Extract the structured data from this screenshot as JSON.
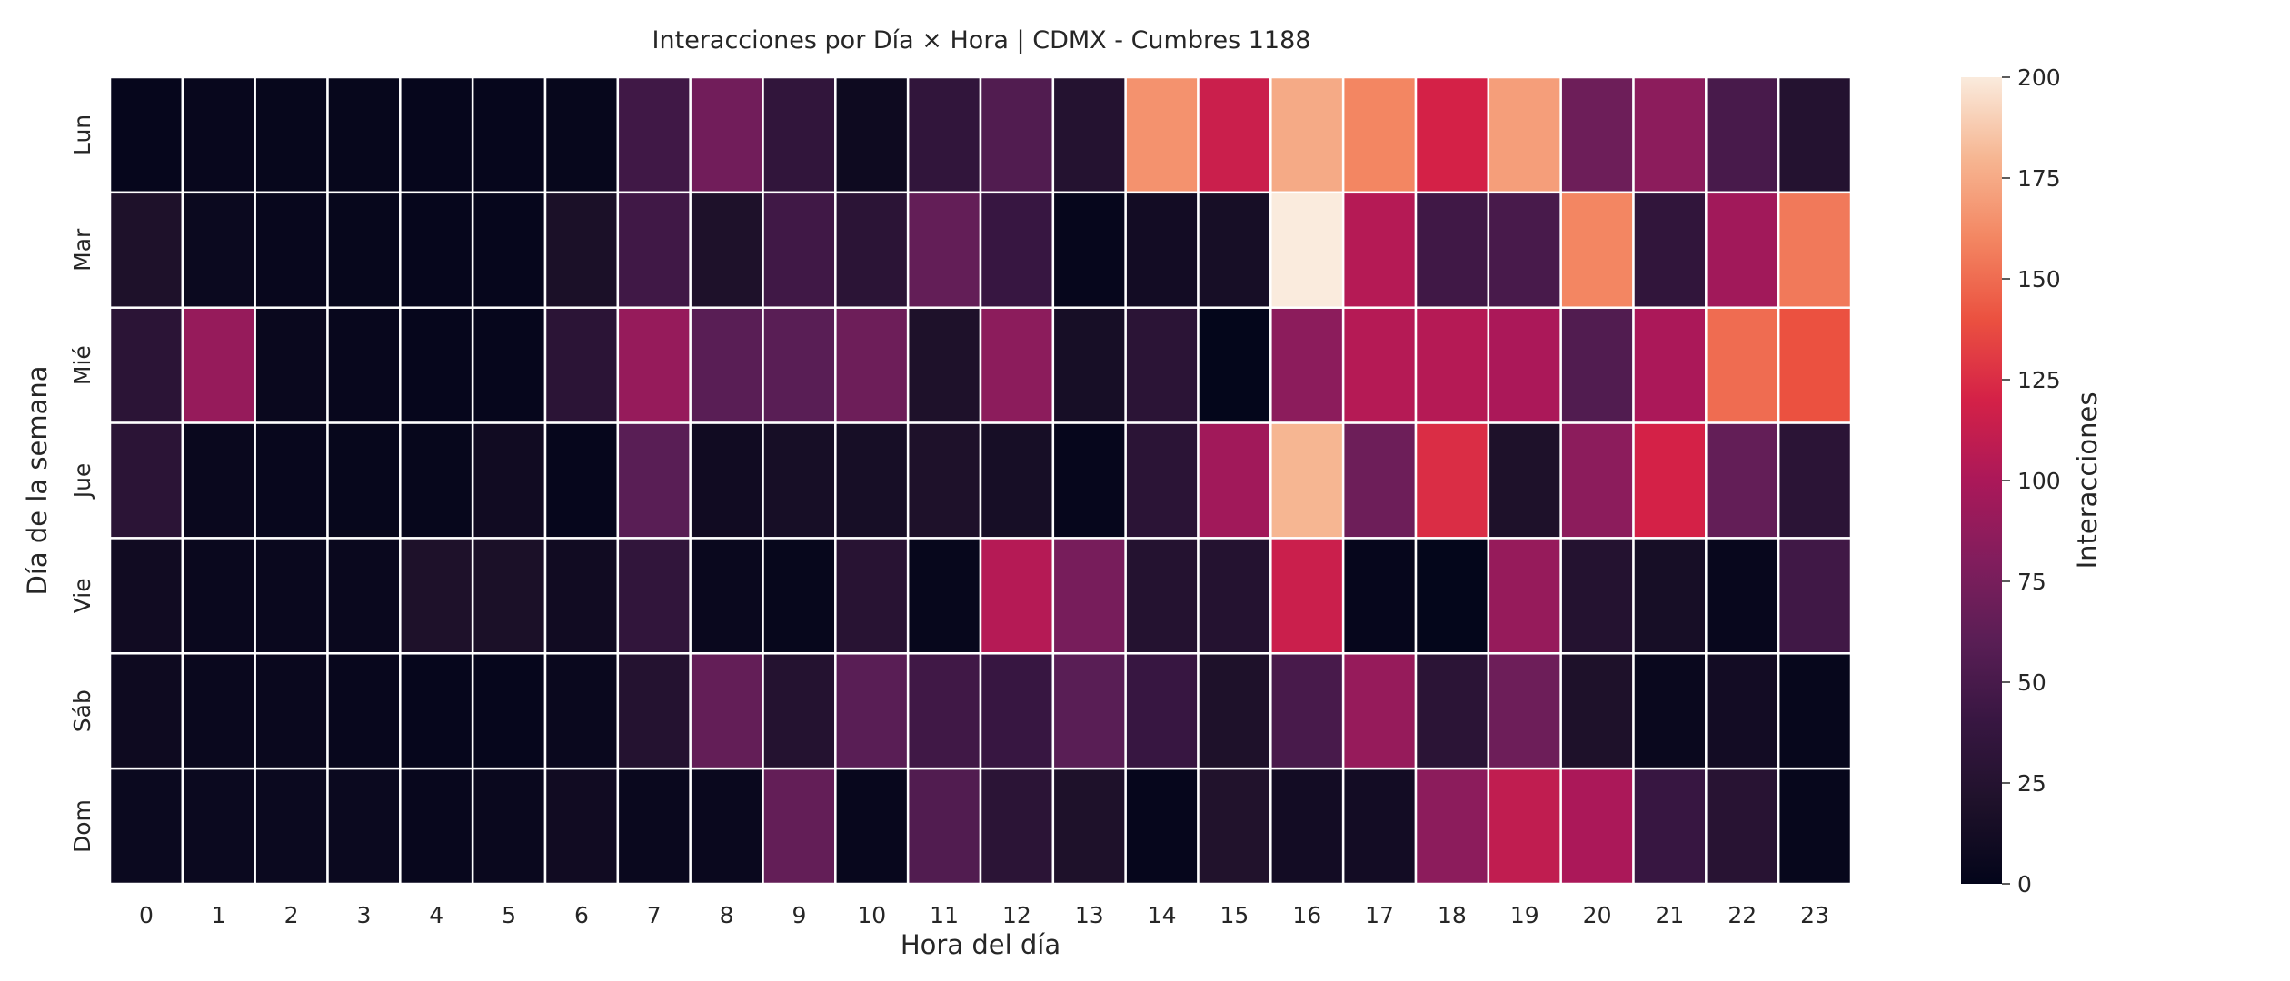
{
  "chart_data": {
    "type": "heatmap",
    "title": "Interacciones por Día × Hora | CDMX - Cumbres 1188",
    "xlabel": "Hora del día",
    "ylabel": "Día de la semana",
    "x_categories": [
      "0",
      "1",
      "2",
      "3",
      "4",
      "5",
      "6",
      "7",
      "8",
      "9",
      "10",
      "11",
      "12",
      "13",
      "14",
      "15",
      "16",
      "17",
      "18",
      "19",
      "20",
      "21",
      "22",
      "23"
    ],
    "y_categories": [
      "Lun",
      "Mar",
      "Mié",
      "Jue",
      "Vie",
      "Sáb",
      "Dom"
    ],
    "values": [
      [
        2,
        4,
        3,
        3,
        2,
        2,
        3,
        45,
        72,
        35,
        8,
        35,
        55,
        25,
        165,
        115,
        175,
        160,
        120,
        170,
        70,
        85,
        50,
        25
      ],
      [
        20,
        6,
        4,
        3,
        2,
        2,
        18,
        45,
        20,
        45,
        30,
        65,
        40,
        2,
        12,
        15,
        200,
        105,
        45,
        50,
        160,
        35,
        95,
        155
      ],
      [
        30,
        90,
        5,
        4,
        2,
        2,
        30,
        90,
        60,
        60,
        70,
        20,
        85,
        15,
        30,
        1,
        85,
        105,
        105,
        100,
        55,
        100,
        150,
        140
      ],
      [
        30,
        5,
        4,
        3,
        3,
        10,
        2,
        60,
        10,
        15,
        15,
        20,
        15,
        2,
        30,
        95,
        180,
        70,
        125,
        20,
        85,
        120,
        65,
        30
      ],
      [
        10,
        5,
        5,
        5,
        20,
        18,
        10,
        35,
        5,
        3,
        28,
        3,
        105,
        75,
        25,
        25,
        115,
        2,
        1,
        90,
        25,
        15,
        4,
        45
      ],
      [
        8,
        5,
        5,
        4,
        2,
        2,
        5,
        25,
        65,
        25,
        60,
        45,
        40,
        60,
        40,
        20,
        50,
        90,
        30,
        70,
        20,
        5,
        12,
        3
      ],
      [
        6,
        6,
        6,
        6,
        4,
        5,
        10,
        5,
        5,
        65,
        4,
        55,
        30,
        20,
        2,
        22,
        12,
        12,
        85,
        110,
        100,
        40,
        28,
        3
      ]
    ],
    "colorbar": {
      "label": "Interacciones",
      "vmin": 0,
      "vmax": 200,
      "ticks": [
        0,
        25,
        50,
        75,
        100,
        125,
        150,
        175,
        200
      ]
    },
    "colormap": "rocket",
    "grid_lines": "white",
    "legend": "colorbar-right"
  }
}
